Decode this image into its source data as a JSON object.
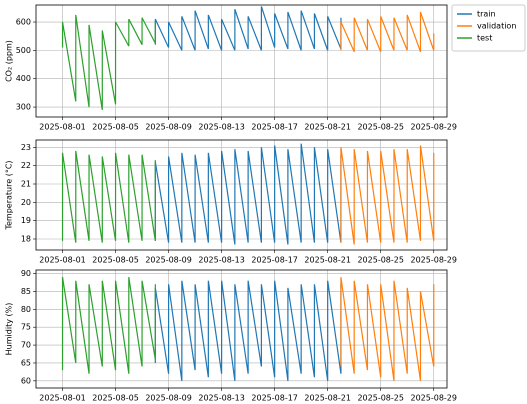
{
  "chart_data": [
    {
      "type": "line",
      "ylabel": "CO₂ (ppm)",
      "grid": true,
      "legend": "outside upper right",
      "xlim": [
        "2025-07-30",
        "2025-08-30"
      ],
      "xticks": [
        "2025-08-01",
        "2025-08-05",
        "2025-08-09",
        "2025-08-13",
        "2025-08-17",
        "2025-08-21",
        "2025-08-25",
        "2025-08-29"
      ],
      "ylim": [
        265,
        660
      ],
      "yticks": [
        300,
        400,
        500,
        600
      ],
      "series": [
        {
          "name": "train",
          "color": "#1f77b4",
          "x": [
            "2025-08-08",
            "2025-08-08",
            "2025-08-09",
            "2025-08-09",
            "2025-08-10",
            "2025-08-10",
            "2025-08-11",
            "2025-08-11",
            "2025-08-12",
            "2025-08-12",
            "2025-08-13",
            "2025-08-13",
            "2025-08-14",
            "2025-08-14",
            "2025-08-15",
            "2025-08-15",
            "2025-08-16",
            "2025-08-16",
            "2025-08-17",
            "2025-08-17",
            "2025-08-18",
            "2025-08-18",
            "2025-08-19",
            "2025-08-19",
            "2025-08-20",
            "2025-08-20",
            "2025-08-21",
            "2025-08-21",
            "2025-08-22",
            "2025-08-22"
          ],
          "values": [
            520,
            610,
            510,
            600,
            500,
            620,
            500,
            640,
            505,
            625,
            500,
            610,
            500,
            645,
            505,
            620,
            500,
            655,
            510,
            630,
            505,
            635,
            500,
            640,
            505,
            630,
            500,
            620,
            505,
            615
          ]
        },
        {
          "name": "validation",
          "color": "#ff7f0e",
          "x": [
            "2025-08-22",
            "2025-08-22",
            "2025-08-23",
            "2025-08-23",
            "2025-08-24",
            "2025-08-24",
            "2025-08-25",
            "2025-08-25",
            "2025-08-26",
            "2025-08-26",
            "2025-08-27",
            "2025-08-27",
            "2025-08-28",
            "2025-08-28",
            "2025-08-29",
            "2025-08-29"
          ],
          "values": [
            500,
            600,
            495,
            615,
            500,
            610,
            495,
            620,
            500,
            615,
            500,
            625,
            495,
            635,
            500,
            560
          ]
        },
        {
          "name": "test",
          "color": "#2ca02c",
          "x": [
            "2025-08-01",
            "2025-08-01",
            "2025-08-02",
            "2025-08-02",
            "2025-08-03",
            "2025-08-03",
            "2025-08-04",
            "2025-08-04",
            "2025-08-05",
            "2025-08-05",
            "2025-08-06",
            "2025-08-06",
            "2025-08-07",
            "2025-08-07",
            "2025-08-08",
            "2025-08-08"
          ],
          "values": [
            510,
            600,
            320,
            625,
            300,
            590,
            290,
            570,
            310,
            600,
            515,
            610,
            520,
            615,
            525,
            600
          ]
        }
      ]
    },
    {
      "type": "line",
      "ylabel": "Temperature (°C)",
      "grid": true,
      "xlim": [
        "2025-07-30",
        "2025-08-30"
      ],
      "xticks": [
        "2025-08-01",
        "2025-08-05",
        "2025-08-09",
        "2025-08-13",
        "2025-08-17",
        "2025-08-21",
        "2025-08-25",
        "2025-08-29"
      ],
      "ylim": [
        17.4,
        23.4
      ],
      "yticks": [
        18,
        19,
        20,
        21,
        22,
        23
      ],
      "series": [
        {
          "name": "train",
          "color": "#1f77b4",
          "x": [
            "2025-08-08",
            "2025-08-08",
            "2025-08-09",
            "2025-08-09",
            "2025-08-10",
            "2025-08-10",
            "2025-08-11",
            "2025-08-11",
            "2025-08-12",
            "2025-08-12",
            "2025-08-13",
            "2025-08-13",
            "2025-08-14",
            "2025-08-14",
            "2025-08-15",
            "2025-08-15",
            "2025-08-16",
            "2025-08-16",
            "2025-08-17",
            "2025-08-17",
            "2025-08-18",
            "2025-08-18",
            "2025-08-19",
            "2025-08-19",
            "2025-08-20",
            "2025-08-20",
            "2025-08-21",
            "2025-08-21",
            "2025-08-22",
            "2025-08-22"
          ],
          "values": [
            17.9,
            22.2,
            17.8,
            22.5,
            17.8,
            22.7,
            17.8,
            22.6,
            17.8,
            22.7,
            17.8,
            22.8,
            17.7,
            22.9,
            17.8,
            22.8,
            17.8,
            23.0,
            17.8,
            23.1,
            17.7,
            22.9,
            17.8,
            23.2,
            17.8,
            23.0,
            17.8,
            22.9,
            17.8,
            22.6
          ]
        },
        {
          "name": "validation",
          "color": "#ff7f0e",
          "x": [
            "2025-08-22",
            "2025-08-22",
            "2025-08-23",
            "2025-08-23",
            "2025-08-24",
            "2025-08-24",
            "2025-08-25",
            "2025-08-25",
            "2025-08-26",
            "2025-08-26",
            "2025-08-27",
            "2025-08-27",
            "2025-08-28",
            "2025-08-28",
            "2025-08-29",
            "2025-08-29"
          ],
          "values": [
            17.8,
            23.0,
            17.7,
            22.9,
            17.8,
            22.8,
            17.8,
            22.8,
            17.8,
            22.9,
            17.8,
            22.9,
            17.9,
            23.1,
            17.9,
            22.7
          ]
        },
        {
          "name": "test",
          "color": "#2ca02c",
          "x": [
            "2025-08-01",
            "2025-08-01",
            "2025-08-02",
            "2025-08-02",
            "2025-08-03",
            "2025-08-03",
            "2025-08-04",
            "2025-08-04",
            "2025-08-05",
            "2025-08-05",
            "2025-08-06",
            "2025-08-06",
            "2025-08-07",
            "2025-08-07",
            "2025-08-08",
            "2025-08-08"
          ],
          "values": [
            17.9,
            22.7,
            17.8,
            22.8,
            17.9,
            22.6,
            17.8,
            22.5,
            17.9,
            22.7,
            17.8,
            22.6,
            17.9,
            22.6,
            17.9,
            22.3
          ]
        }
      ]
    },
    {
      "type": "line",
      "ylabel": "Humidity (%)",
      "grid": true,
      "xlim": [
        "2025-07-30",
        "2025-08-30"
      ],
      "xticks": [
        "2025-08-01",
        "2025-08-05",
        "2025-08-09",
        "2025-08-13",
        "2025-08-17",
        "2025-08-21",
        "2025-08-25",
        "2025-08-29"
      ],
      "ylim": [
        58,
        91
      ],
      "yticks": [
        60,
        65,
        70,
        75,
        80,
        85,
        90
      ],
      "series": [
        {
          "name": "train",
          "color": "#1f77b4",
          "x": [
            "2025-08-08",
            "2025-08-08",
            "2025-08-09",
            "2025-08-09",
            "2025-08-10",
            "2025-08-10",
            "2025-08-11",
            "2025-08-11",
            "2025-08-12",
            "2025-08-12",
            "2025-08-13",
            "2025-08-13",
            "2025-08-14",
            "2025-08-14",
            "2025-08-15",
            "2025-08-15",
            "2025-08-16",
            "2025-08-16",
            "2025-08-17",
            "2025-08-17",
            "2025-08-18",
            "2025-08-18",
            "2025-08-19",
            "2025-08-19",
            "2025-08-20",
            "2025-08-20",
            "2025-08-21",
            "2025-08-21",
            "2025-08-22",
            "2025-08-22"
          ],
          "values": [
            65,
            86,
            62,
            87,
            60,
            88,
            63,
            87,
            61,
            88,
            62,
            88,
            60,
            87,
            62,
            88,
            64,
            87,
            61,
            88,
            60,
            86,
            62,
            87,
            61,
            87,
            60,
            88,
            62,
            87
          ]
        },
        {
          "name": "validation",
          "color": "#ff7f0e",
          "x": [
            "2025-08-22",
            "2025-08-22",
            "2025-08-23",
            "2025-08-23",
            "2025-08-24",
            "2025-08-24",
            "2025-08-25",
            "2025-08-25",
            "2025-08-26",
            "2025-08-26",
            "2025-08-27",
            "2025-08-27",
            "2025-08-28",
            "2025-08-28",
            "2025-08-29",
            "2025-08-29"
          ],
          "values": [
            64,
            89,
            62,
            88,
            63,
            87,
            61,
            87,
            60,
            88,
            62,
            86,
            60,
            85,
            64,
            87
          ]
        },
        {
          "name": "test",
          "color": "#2ca02c",
          "x": [
            "2025-08-01",
            "2025-08-01",
            "2025-08-02",
            "2025-08-02",
            "2025-08-03",
            "2025-08-03",
            "2025-08-04",
            "2025-08-04",
            "2025-08-05",
            "2025-08-05",
            "2025-08-06",
            "2025-08-06",
            "2025-08-07",
            "2025-08-07",
            "2025-08-08",
            "2025-08-08"
          ],
          "values": [
            63,
            89,
            65,
            88,
            62,
            87,
            64,
            88,
            63,
            88,
            62,
            89,
            64,
            88,
            66,
            87
          ]
        }
      ]
    }
  ]
}
